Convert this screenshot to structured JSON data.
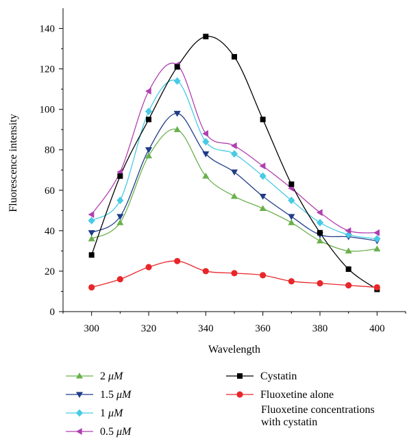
{
  "chart_data": {
    "type": "line",
    "title": "",
    "xlabel": "Wavelength",
    "ylabel": "Fluorescence intensity",
    "xlim": [
      290,
      410
    ],
    "ylim": [
      0,
      150
    ],
    "x_ticks": [
      300,
      320,
      340,
      360,
      380,
      400
    ],
    "y_ticks": [
      0,
      20,
      40,
      60,
      80,
      100,
      120,
      140
    ],
    "grid": false,
    "legend_position": "bottom",
    "legend_note": "Fluoxetine concentrations with cystatin",
    "x": [
      300,
      310,
      320,
      330,
      340,
      350,
      360,
      370,
      380,
      390,
      400
    ],
    "series": [
      {
        "name": "2 μM",
        "color": "#6ab04c",
        "marker": "triangle-up",
        "values": [
          36,
          44,
          77,
          90,
          67,
          57,
          51,
          44,
          35,
          30,
          31
        ]
      },
      {
        "name": "1.5 μM",
        "color": "#1f3c88",
        "marker": "triangle-down",
        "values": [
          39,
          47,
          80,
          98,
          78,
          69,
          57,
          47,
          38,
          37,
          35
        ]
      },
      {
        "name": "1 μM",
        "color": "#48cae4",
        "marker": "diamond",
        "values": [
          45,
          55,
          99,
          114,
          84,
          78,
          67,
          55,
          44,
          38,
          36
        ]
      },
      {
        "name": "0.5 μM",
        "color": "#b040b0",
        "marker": "triangle-left",
        "values": [
          48,
          69,
          109,
          122,
          88,
          82,
          72,
          61,
          49,
          40,
          39
        ]
      },
      {
        "name": "Cystatin",
        "color": "#000000",
        "marker": "square",
        "values": [
          28,
          67,
          95,
          121,
          136,
          126,
          95,
          63,
          39,
          21,
          11
        ]
      },
      {
        "name": "Fluoxetine alone",
        "color": "#e8262a",
        "marker": "circle",
        "values": [
          12,
          16,
          22,
          25,
          20,
          19,
          18,
          15,
          14,
          13,
          12
        ]
      }
    ]
  }
}
